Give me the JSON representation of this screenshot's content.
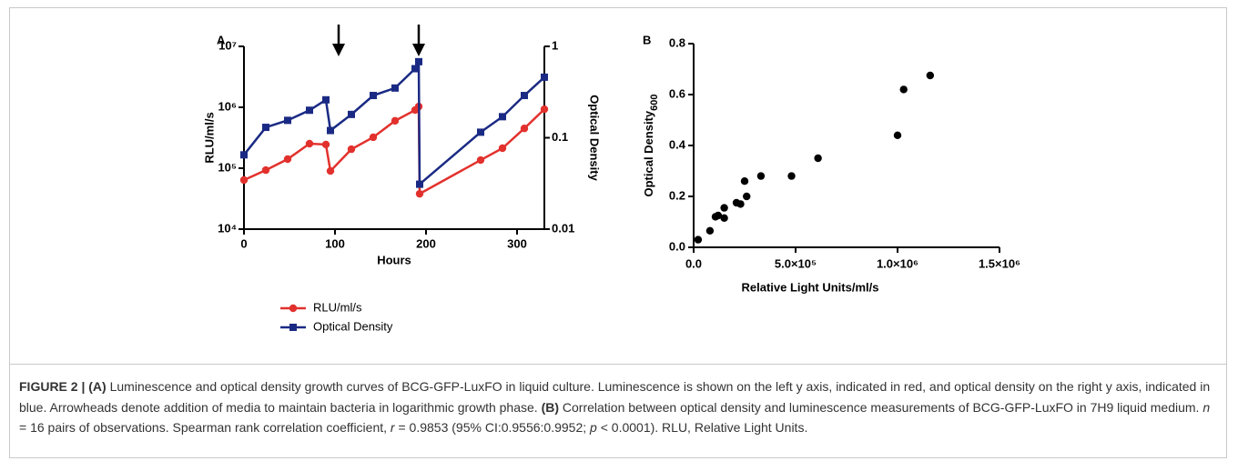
{
  "chart_data": [
    {
      "type": "line",
      "panel": "A",
      "x_label": "Hours",
      "y_label": "RLU/ml/s",
      "y2_label": "Optical Density",
      "x": [
        0,
        24,
        48,
        72,
        90,
        95,
        118,
        142,
        166,
        188,
        192,
        193,
        260,
        284,
        308,
        330
      ],
      "xlim": [
        0,
        330
      ],
      "xticks": [
        0,
        100,
        200,
        300
      ],
      "ylim": [
        10000,
        10000000
      ],
      "yscale": "log",
      "yticks": [
        {
          "value": 10000,
          "label": "10⁴"
        },
        {
          "value": 100000,
          "label": "10⁵"
        },
        {
          "value": 1000000,
          "label": "10⁶"
        },
        {
          "value": 10000000,
          "label": "10⁷"
        }
      ],
      "y2lim": [
        0.01,
        1
      ],
      "y2scale": "log",
      "y2ticks": [
        0.01,
        0.1,
        1
      ],
      "legend": "bottom",
      "series": [
        {
          "name": "RLU/ml/s",
          "color": "#e2312d",
          "marker": "circle",
          "axis": "y",
          "values": [
            64000,
            93000,
            141000,
            253000,
            245000,
            90000,
            205000,
            322000,
            600000,
            900000,
            1030000,
            38000,
            136000,
            213000,
            450000,
            930000
          ]
        },
        {
          "name": "Optical Density",
          "color": "#1a2a84",
          "marker": "square",
          "axis": "y2",
          "values": [
            0.065,
            0.13,
            0.155,
            0.2,
            0.26,
            0.12,
            0.18,
            0.29,
            0.35,
            0.57,
            0.68,
            0.031,
            0.115,
            0.17,
            0.29,
            0.46
          ]
        }
      ]
    },
    {
      "type": "scatter",
      "panel": "B",
      "x_label": "Relative Light Units/ml/s",
      "y_label": "Optical Density",
      "y_label_sub": "600",
      "color": "#000000",
      "x": [
        22000,
        80000,
        107000,
        120000,
        150000,
        150000,
        210000,
        230000,
        250000,
        260000,
        330000,
        480000,
        610000,
        1000000,
        1030000,
        1160000
      ],
      "values": [
        0.03,
        0.065,
        0.12,
        0.125,
        0.115,
        0.155,
        0.175,
        0.17,
        0.26,
        0.2,
        0.28,
        0.28,
        0.35,
        0.44,
        0.62,
        0.675
      ],
      "xlim": [
        0,
        1500000
      ],
      "xticks": [
        {
          "value": 0,
          "label": "0.0"
        },
        {
          "value": 500000,
          "label": "5.0×10⁵"
        },
        {
          "value": 1000000,
          "label": "1.0×10⁶"
        },
        {
          "value": 1500000,
          "label": "1.5×10⁶"
        }
      ],
      "ylim": [
        0,
        0.8
      ],
      "yticks": [
        {
          "value": 0,
          "label": "0.0"
        },
        0.2,
        0.4,
        0.6,
        0.8
      ]
    }
  ],
  "caption": [
    {
      "text": "FIGURE 2 | (A)",
      "style": "bold"
    },
    {
      "text": " Luminescence and optical density growth curves of BCG-GFP-LuxFO in liquid culture. Luminescence is shown on the left y axis, indicated in red, and optical density on the right y axis, indicated in blue. Arrowheads denote addition of media to maintain bacteria in logarithmic growth phase. ",
      "style": "normal"
    },
    {
      "text": "(B)",
      "style": "bold"
    },
    {
      "text": " Correlation between optical density and luminescence measurements of BCG-GFP-LuxFO in 7H9 liquid medium. ",
      "style": "normal"
    },
    {
      "text": "n",
      "style": "italic"
    },
    {
      "text": " = 16 pairs of observations. Spearman rank correlation coefficient, ",
      "style": "normal"
    },
    {
      "text": "r",
      "style": "italic"
    },
    {
      "text": " = 0.9853 (95% CI:0.9556:0.9952; ",
      "style": "normal"
    },
    {
      "text": "p",
      "style": "italic"
    },
    {
      "text": " < 0.0001). RLU, Relative Light Units.",
      "style": "normal"
    }
  ]
}
